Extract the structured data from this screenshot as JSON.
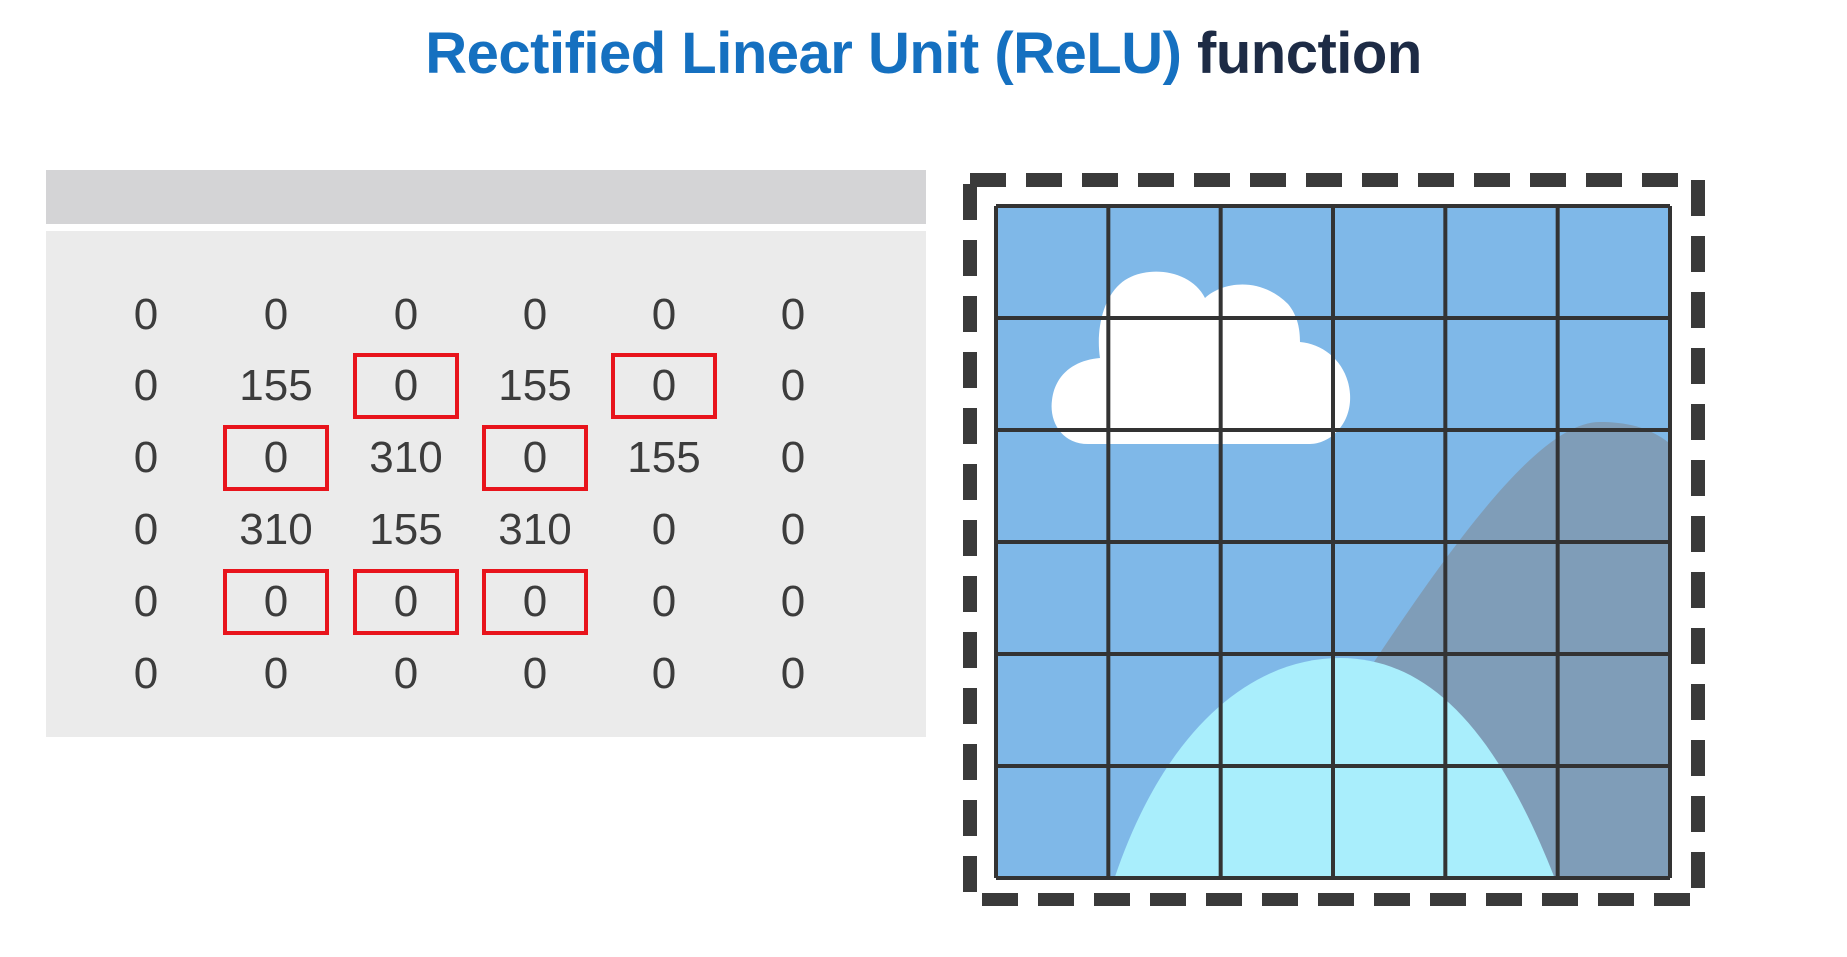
{
  "title": {
    "highlighted": "Rectified Linear Unit (ReLU)",
    "rest": "function"
  },
  "matrix": {
    "rows": [
      [
        "0",
        "0",
        "0",
        "0",
        "0",
        "0"
      ],
      [
        "0",
        "155",
        "0",
        "155",
        "0",
        "0"
      ],
      [
        "0",
        "0",
        "310",
        "0",
        "155",
        "0"
      ],
      [
        "0",
        "310",
        "155",
        "310",
        "0",
        "0"
      ],
      [
        "0",
        "0",
        "0",
        "0",
        "0",
        "0"
      ],
      [
        "0",
        "0",
        "0",
        "0",
        "0",
        "0"
      ]
    ],
    "highlighted_cells": [
      [
        1,
        2
      ],
      [
        1,
        4
      ],
      [
        2,
        1
      ],
      [
        2,
        3
      ],
      [
        4,
        1
      ],
      [
        4,
        2
      ],
      [
        4,
        3
      ]
    ]
  },
  "colors": {
    "title_blue": "#1570c0",
    "title_dark": "#1d2b45",
    "highlight_red": "#e8141c",
    "sky": "#7fb8e8",
    "mountain": "#7f9db8",
    "hill": "#a9eefc",
    "cloud": "#ffffff",
    "grid": "#333333"
  },
  "image": {
    "grid_size": 6,
    "icons": [
      "cloud-icon",
      "mountain-icon",
      "hill-icon"
    ]
  }
}
